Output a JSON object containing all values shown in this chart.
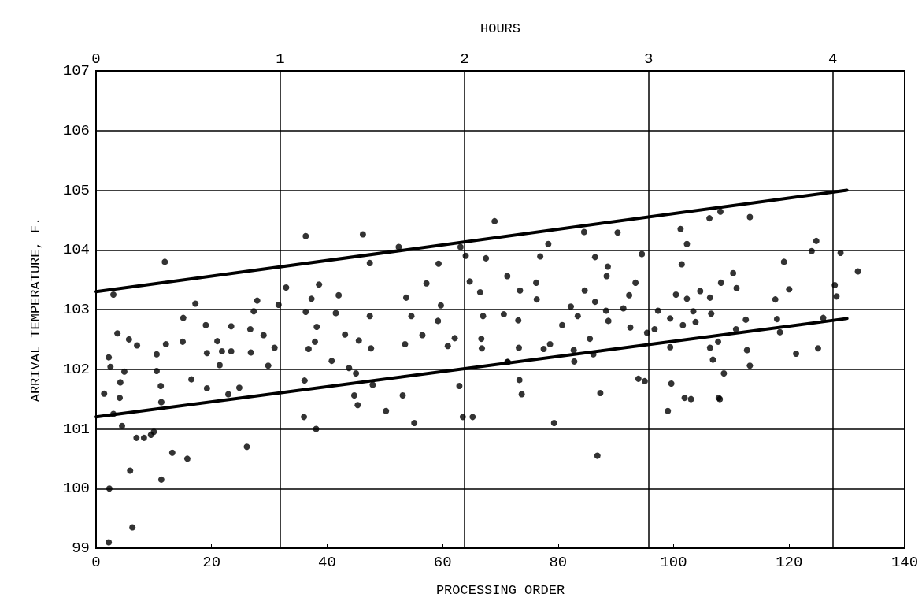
{
  "chart_data": {
    "type": "scatter",
    "xlabel": "PROCESSING ORDER",
    "ylabel": "ARRIVAL TEMPERATURE, F.",
    "x2label": "HOURS",
    "xlim": [
      0,
      140
    ],
    "xticks": [
      0,
      20,
      40,
      60,
      80,
      100,
      120,
      140
    ],
    "x2lim": [
      0,
      4.39
    ],
    "x2ticks": [
      0,
      1,
      2,
      3,
      4
    ],
    "ylim": [
      99,
      107
    ],
    "yticks": [
      99,
      100,
      101,
      102,
      103,
      104,
      105,
      106,
      107
    ],
    "grid": true,
    "series": [
      {
        "color": "#000000",
        "marker": "circle",
        "x": [
          11.9,
          17.2,
          27.9,
          32.9,
          27.3,
          31.6,
          15.1,
          3.7,
          5.7,
          7.1,
          2.2,
          2.5,
          15.0,
          19.0,
          23.4,
          26.7,
          29.0,
          21.0,
          12.1,
          21.8,
          23.4,
          19.2,
          10.5,
          26.8,
          30.9,
          29.8,
          21.4,
          10.5,
          4.9,
          4.2,
          11.2,
          16.5,
          19.2,
          24.8,
          22.9,
          1.4,
          4.1,
          11.3,
          3.0,
          36.3,
          52.4,
          46.2,
          69.0,
          47.4,
          59.3,
          64.0,
          67.5,
          38.6,
          57.2,
          64.7,
          66.5,
          37.3,
          42.0,
          53.7,
          59.7,
          36.3,
          41.5,
          47.4,
          54.6,
          59.2,
          67.0,
          70.6,
          38.2,
          43.1,
          37.9,
          45.5,
          53.5,
          56.5,
          62.1,
          66.7,
          60.9,
          66.8,
          36.8,
          40.8,
          47.6,
          43.8,
          45.0,
          36.1,
          47.9,
          53.1,
          62.9,
          44.7,
          71.3,
          63.1,
          106.2,
          101.2,
          84.5,
          90.3,
          78.3,
          102.3,
          76.9,
          86.4,
          94.5,
          88.6,
          101.4,
          71.2,
          88.4,
          76.2,
          93.4,
          73.4,
          84.6,
          92.3,
          100.4,
          104.6,
          76.3,
          86.4,
          102.3,
          82.2,
          91.3,
          97.3,
          73.1,
          83.4,
          88.3,
          88.7,
          99.4,
          103.4,
          103.8,
          80.7,
          92.5,
          96.7,
          101.6,
          95.4,
          85.5,
          78.6,
          73.2,
          77.5,
          82.7,
          86.1,
          99.4,
          71.2,
          82.8,
          106.8,
          73.3,
          99.6,
          73.7,
          101.9,
          93.9,
          108.1,
          113.2,
          124.7,
          123.9,
          128.9,
          119.1,
          131.9,
          110.3,
          108.2,
          110.9,
          120.0,
          127.9,
          106.3,
          117.6,
          128.2,
          106.5,
          112.5,
          117.9,
          125.9,
          110.8,
          118.4,
          107.7,
          106.3,
          112.7,
          121.2,
          125.0,
          113.2,
          108.7,
          107.8,
          2.2,
          2.3,
          6.3,
          5.9,
          11.3,
          13.2,
          15.8,
          26.1,
          86.8,
          7.0,
          8.3,
          9.5,
          10.0,
          4.5,
          3.0,
          38.1,
          36.0,
          55.1,
          63.5,
          65.2,
          79.3,
          99.0,
          50.2,
          45.3,
          108.0,
          103.0,
          87.3,
          95.0
        ],
        "values": [
          103.8,
          103.1,
          103.15,
          103.37,
          102.97,
          103.08,
          102.86,
          102.6,
          102.5,
          102.4,
          102.2,
          102.04,
          102.46,
          102.74,
          102.72,
          102.67,
          102.57,
          102.47,
          102.42,
          102.3,
          102.3,
          102.27,
          102.25,
          102.28,
          102.36,
          102.06,
          102.07,
          101.97,
          101.96,
          101.78,
          101.72,
          101.83,
          101.68,
          101.69,
          101.58,
          101.59,
          101.52,
          101.45,
          103.25,
          104.23,
          104.05,
          104.26,
          104.48,
          103.78,
          103.77,
          103.9,
          103.86,
          103.42,
          103.44,
          103.47,
          103.29,
          103.18,
          103.24,
          103.2,
          103.07,
          102.96,
          102.94,
          102.89,
          102.89,
          102.81,
          102.89,
          102.92,
          102.71,
          102.58,
          102.46,
          102.48,
          102.42,
          102.57,
          102.52,
          102.51,
          102.39,
          102.35,
          102.34,
          102.14,
          102.35,
          102.02,
          101.93,
          101.81,
          101.74,
          101.56,
          101.72,
          101.56,
          102.12,
          104.05,
          104.53,
          104.35,
          104.3,
          104.29,
          104.1,
          104.1,
          103.89,
          103.88,
          103.93,
          103.72,
          103.76,
          103.56,
          103.56,
          103.45,
          103.45,
          103.32,
          103.32,
          103.24,
          103.25,
          103.31,
          103.17,
          103.13,
          103.18,
          103.05,
          103.02,
          102.98,
          102.82,
          102.89,
          102.98,
          102.81,
          102.85,
          102.97,
          102.79,
          102.74,
          102.7,
          102.67,
          102.74,
          102.61,
          102.51,
          102.42,
          102.36,
          102.34,
          102.32,
          102.25,
          102.37,
          102.12,
          102.13,
          102.16,
          101.82,
          101.76,
          101.58,
          101.52,
          101.84,
          104.64,
          104.55,
          104.15,
          103.98,
          103.95,
          103.8,
          103.64,
          103.61,
          103.45,
          103.36,
          103.34,
          103.41,
          103.2,
          103.17,
          103.22,
          102.93,
          102.83,
          102.84,
          102.86,
          102.67,
          102.62,
          102.46,
          102.36,
          102.32,
          102.26,
          102.35,
          102.06,
          101.93,
          101.52,
          99.1,
          100.0,
          99.35,
          100.3,
          100.15,
          100.6,
          100.5,
          100.7,
          100.55,
          100.85,
          100.85,
          100.9,
          100.95,
          101.05,
          101.25,
          101.0,
          101.2,
          101.1,
          101.2,
          101.2,
          101.1,
          101.3,
          101.3,
          101.4,
          101.5,
          101.5,
          101.6,
          101.8
        ]
      },
      {
        "type": "line",
        "color": "#000000",
        "marker": "none",
        "line_style": "solid",
        "x": [
          0,
          130
        ],
        "values": [
          103.3,
          105.0
        ]
      },
      {
        "type": "line",
        "color": "#000000",
        "marker": "none",
        "line_style": "solid",
        "x": [
          0,
          130
        ],
        "values": [
          101.2,
          102.85
        ]
      }
    ]
  }
}
